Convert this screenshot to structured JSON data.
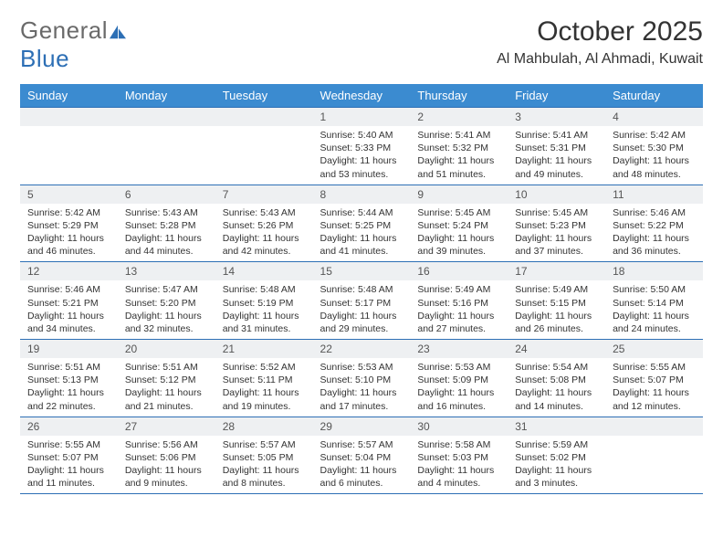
{
  "logo": {
    "part1": "General",
    "part2": "Blue"
  },
  "title": "October 2025",
  "location": "Al Mahbulah, Al Ahmadi, Kuwait",
  "colors": {
    "header_bg": "#3b8bd0",
    "header_text": "#ffffff",
    "rule": "#2d6fb5",
    "daynum_bg": "#eef0f2",
    "body_text": "#333333",
    "logo_gray": "#6a6a6a",
    "logo_blue": "#2d6fb5"
  },
  "dow": [
    "Sunday",
    "Monday",
    "Tuesday",
    "Wednesday",
    "Thursday",
    "Friday",
    "Saturday"
  ],
  "weeks": [
    [
      null,
      null,
      null,
      {
        "n": "1",
        "sr": "5:40 AM",
        "ss": "5:33 PM",
        "dh": "11",
        "dm": "53"
      },
      {
        "n": "2",
        "sr": "5:41 AM",
        "ss": "5:32 PM",
        "dh": "11",
        "dm": "51"
      },
      {
        "n": "3",
        "sr": "5:41 AM",
        "ss": "5:31 PM",
        "dh": "11",
        "dm": "49"
      },
      {
        "n": "4",
        "sr": "5:42 AM",
        "ss": "5:30 PM",
        "dh": "11",
        "dm": "48"
      }
    ],
    [
      {
        "n": "5",
        "sr": "5:42 AM",
        "ss": "5:29 PM",
        "dh": "11",
        "dm": "46"
      },
      {
        "n": "6",
        "sr": "5:43 AM",
        "ss": "5:28 PM",
        "dh": "11",
        "dm": "44"
      },
      {
        "n": "7",
        "sr": "5:43 AM",
        "ss": "5:26 PM",
        "dh": "11",
        "dm": "42"
      },
      {
        "n": "8",
        "sr": "5:44 AM",
        "ss": "5:25 PM",
        "dh": "11",
        "dm": "41"
      },
      {
        "n": "9",
        "sr": "5:45 AM",
        "ss": "5:24 PM",
        "dh": "11",
        "dm": "39"
      },
      {
        "n": "10",
        "sr": "5:45 AM",
        "ss": "5:23 PM",
        "dh": "11",
        "dm": "37"
      },
      {
        "n": "11",
        "sr": "5:46 AM",
        "ss": "5:22 PM",
        "dh": "11",
        "dm": "36"
      }
    ],
    [
      {
        "n": "12",
        "sr": "5:46 AM",
        "ss": "5:21 PM",
        "dh": "11",
        "dm": "34"
      },
      {
        "n": "13",
        "sr": "5:47 AM",
        "ss": "5:20 PM",
        "dh": "11",
        "dm": "32"
      },
      {
        "n": "14",
        "sr": "5:48 AM",
        "ss": "5:19 PM",
        "dh": "11",
        "dm": "31"
      },
      {
        "n": "15",
        "sr": "5:48 AM",
        "ss": "5:17 PM",
        "dh": "11",
        "dm": "29"
      },
      {
        "n": "16",
        "sr": "5:49 AM",
        "ss": "5:16 PM",
        "dh": "11",
        "dm": "27"
      },
      {
        "n": "17",
        "sr": "5:49 AM",
        "ss": "5:15 PM",
        "dh": "11",
        "dm": "26"
      },
      {
        "n": "18",
        "sr": "5:50 AM",
        "ss": "5:14 PM",
        "dh": "11",
        "dm": "24"
      }
    ],
    [
      {
        "n": "19",
        "sr": "5:51 AM",
        "ss": "5:13 PM",
        "dh": "11",
        "dm": "22"
      },
      {
        "n": "20",
        "sr": "5:51 AM",
        "ss": "5:12 PM",
        "dh": "11",
        "dm": "21"
      },
      {
        "n": "21",
        "sr": "5:52 AM",
        "ss": "5:11 PM",
        "dh": "11",
        "dm": "19"
      },
      {
        "n": "22",
        "sr": "5:53 AM",
        "ss": "5:10 PM",
        "dh": "11",
        "dm": "17"
      },
      {
        "n": "23",
        "sr": "5:53 AM",
        "ss": "5:09 PM",
        "dh": "11",
        "dm": "16"
      },
      {
        "n": "24",
        "sr": "5:54 AM",
        "ss": "5:08 PM",
        "dh": "11",
        "dm": "14"
      },
      {
        "n": "25",
        "sr": "5:55 AM",
        "ss": "5:07 PM",
        "dh": "11",
        "dm": "12"
      }
    ],
    [
      {
        "n": "26",
        "sr": "5:55 AM",
        "ss": "5:07 PM",
        "dh": "11",
        "dm": "11"
      },
      {
        "n": "27",
        "sr": "5:56 AM",
        "ss": "5:06 PM",
        "dh": "11",
        "dm": "9"
      },
      {
        "n": "28",
        "sr": "5:57 AM",
        "ss": "5:05 PM",
        "dh": "11",
        "dm": "8"
      },
      {
        "n": "29",
        "sr": "5:57 AM",
        "ss": "5:04 PM",
        "dh": "11",
        "dm": "6"
      },
      {
        "n": "30",
        "sr": "5:58 AM",
        "ss": "5:03 PM",
        "dh": "11",
        "dm": "4"
      },
      {
        "n": "31",
        "sr": "5:59 AM",
        "ss": "5:02 PM",
        "dh": "11",
        "dm": "3"
      },
      null
    ]
  ],
  "labels": {
    "sunrise": "Sunrise:",
    "sunset": "Sunset:",
    "daylight": "Daylight:",
    "hours": "hours",
    "and": "and",
    "minutes": "minutes."
  }
}
